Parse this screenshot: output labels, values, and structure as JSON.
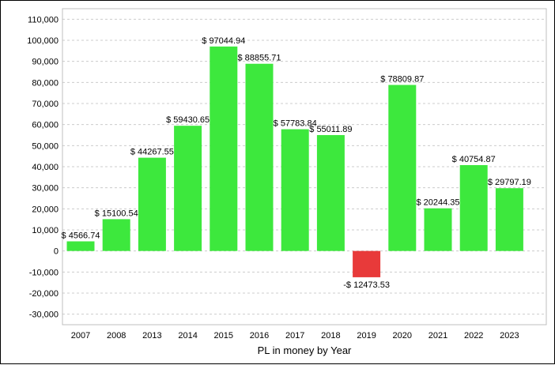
{
  "chart_data": {
    "type": "bar",
    "title": "",
    "xlabel": "PL in money by Year",
    "ylabel": "",
    "ylim": [
      -35000,
      115000
    ],
    "yticks": [
      110000,
      100000,
      90000,
      80000,
      70000,
      60000,
      50000,
      40000,
      30000,
      20000,
      10000,
      0,
      -10000,
      -20000,
      -30000
    ],
    "ytick_labels": [
      "110,000",
      "100,000",
      "90,000",
      "80,000",
      "70,000",
      "60,000",
      "50,000",
      "40,000",
      "30,000",
      "20,000",
      "10,000",
      "0",
      "-10,000",
      "-20,000",
      "-30,000"
    ],
    "grid": true,
    "legend": "none",
    "categories": [
      "2007",
      "2008",
      "2013",
      "2014",
      "2015",
      "2016",
      "2017",
      "2018",
      "2019",
      "2020",
      "2021",
      "2022",
      "2023"
    ],
    "values": [
      4566.74,
      15100.54,
      44267.55,
      59430.65,
      97044.94,
      88855.71,
      57783.84,
      55011.89,
      -12473.53,
      78809.87,
      20244.35,
      40754.87,
      29797.19
    ],
    "data_labels": [
      "$ 4566.74",
      "$ 15100.54",
      "$ 44267.55",
      "$ 59430.65",
      "$ 97044.94",
      "$ 88855.71",
      "$ 57783.84",
      "$ 55011.89",
      "-$ 12473.53",
      "$ 78809.87",
      "$ 20244.35",
      "$ 40754.87",
      "$ 29797.19"
    ],
    "colors": {
      "positive": "#3de83d",
      "negative": "#e83a3a",
      "grid": "#cccccc"
    }
  }
}
